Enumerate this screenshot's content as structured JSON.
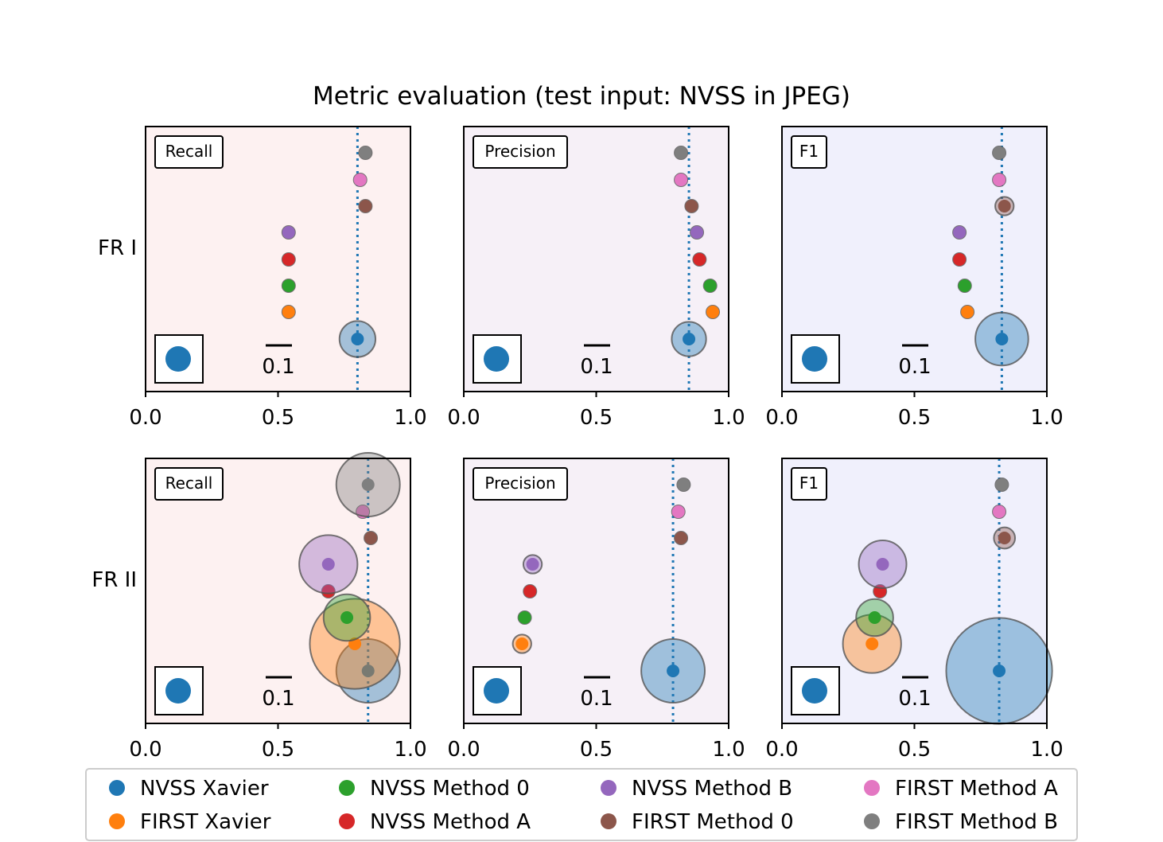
{
  "figure": {
    "title": "Metric evaluation (test input: NVSS in JPEG)",
    "row_labels": [
      "FR I",
      "FR II"
    ],
    "scale_label": "0.1",
    "x_ticks": [
      "0.0",
      "0.5",
      "1.0"
    ]
  },
  "colors": {
    "NVSS Xavier": "#1f77b4",
    "FIRST Xavier": "#ff7f0e",
    "NVSS Method 0": "#2ca02c",
    "NVSS Method A": "#d62728",
    "NVSS Method B": "#9467bd",
    "FIRST Method 0": "#8c564b",
    "FIRST Method A": "#e377c2",
    "FIRST Method B": "#7f7f7f",
    "panel_recall_bg": "#fdf1f1",
    "panel_precision_bg": "#f6f0f7",
    "panel_f1_bg": "#f0f0fc",
    "reference_line": "#1f77b4"
  },
  "legend": [
    "NVSS Xavier",
    "FIRST Xavier",
    "NVSS Method 0",
    "NVSS Method A",
    "NVSS Method B",
    "FIRST Method 0",
    "FIRST Method A",
    "FIRST Method B"
  ],
  "chart_data": [
    {
      "type": "scatter",
      "row": "FR I",
      "metric": "Recall",
      "xlim": [
        0,
        1
      ],
      "reference": 0.8,
      "series_order": [
        "NVSS Xavier",
        "FIRST Xavier",
        "NVSS Method 0",
        "NVSS Method A",
        "NVSS Method B",
        "FIRST Method 0",
        "FIRST Method A",
        "FIRST Method B"
      ],
      "values": [
        0.8,
        0.54,
        0.54,
        0.54,
        0.54,
        0.83,
        0.81,
        0.83
      ],
      "spread": [
        0.068,
        0.01,
        0.01,
        0.01,
        0.01,
        0.01,
        0.01,
        0.01
      ]
    },
    {
      "type": "scatter",
      "row": "FR I",
      "metric": "Precision",
      "xlim": [
        0,
        1
      ],
      "reference": 0.85,
      "series_order": [
        "NVSS Xavier",
        "FIRST Xavier",
        "NVSS Method 0",
        "NVSS Method A",
        "NVSS Method B",
        "FIRST Method 0",
        "FIRST Method A",
        "FIRST Method B"
      ],
      "values": [
        0.85,
        0.94,
        0.93,
        0.89,
        0.88,
        0.86,
        0.82,
        0.82
      ],
      "spread": [
        0.065,
        0.01,
        0.01,
        0.01,
        0.01,
        0.01,
        0.01,
        0.01
      ]
    },
    {
      "type": "scatter",
      "row": "FR I",
      "metric": "F1",
      "xlim": [
        0,
        1
      ],
      "reference": 0.83,
      "series_order": [
        "NVSS Xavier",
        "FIRST Xavier",
        "NVSS Method 0",
        "NVSS Method A",
        "NVSS Method B",
        "FIRST Method 0",
        "FIRST Method A",
        "FIRST Method B"
      ],
      "values": [
        0.83,
        0.7,
        0.69,
        0.67,
        0.67,
        0.84,
        0.82,
        0.82
      ],
      "spread": [
        0.1,
        0.013,
        0.01,
        0.01,
        0.01,
        0.035,
        0.01,
        0.01
      ]
    },
    {
      "type": "scatter",
      "row": "FR II",
      "metric": "Recall",
      "xlim": [
        0,
        1
      ],
      "reference": 0.84,
      "series_order": [
        "NVSS Xavier",
        "FIRST Xavier",
        "NVSS Method 0",
        "NVSS Method A",
        "NVSS Method B",
        "FIRST Method 0",
        "FIRST Method A",
        "FIRST Method B"
      ],
      "values": [
        0.84,
        0.79,
        0.76,
        0.69,
        0.69,
        0.85,
        0.82,
        0.84
      ],
      "spread": [
        0.12,
        0.17,
        0.088,
        0.012,
        0.11,
        0.012,
        0.012,
        0.12
      ]
    },
    {
      "type": "scatter",
      "row": "FR II",
      "metric": "Precision",
      "xlim": [
        0,
        1
      ],
      "reference": 0.79,
      "series_order": [
        "NVSS Xavier",
        "FIRST Xavier",
        "NVSS Method 0",
        "NVSS Method A",
        "NVSS Method B",
        "FIRST Method 0",
        "FIRST Method A",
        "FIRST Method B"
      ],
      "values": [
        0.79,
        0.22,
        0.23,
        0.25,
        0.26,
        0.82,
        0.81,
        0.83
      ],
      "spread": [
        0.12,
        0.035,
        0.012,
        0.01,
        0.035,
        0.012,
        0.01,
        0.012
      ]
    },
    {
      "type": "scatter",
      "row": "FR II",
      "metric": "F1",
      "xlim": [
        0,
        1
      ],
      "reference": 0.82,
      "series_order": [
        "NVSS Xavier",
        "FIRST Xavier",
        "NVSS Method 0",
        "NVSS Method A",
        "NVSS Method B",
        "FIRST Method 0",
        "FIRST Method A",
        "FIRST Method B"
      ],
      "values": [
        0.82,
        0.34,
        0.35,
        0.37,
        0.38,
        0.84,
        0.82,
        0.83
      ],
      "spread": [
        0.2,
        0.11,
        0.07,
        0.01,
        0.09,
        0.04,
        0.01,
        0.012
      ]
    }
  ]
}
